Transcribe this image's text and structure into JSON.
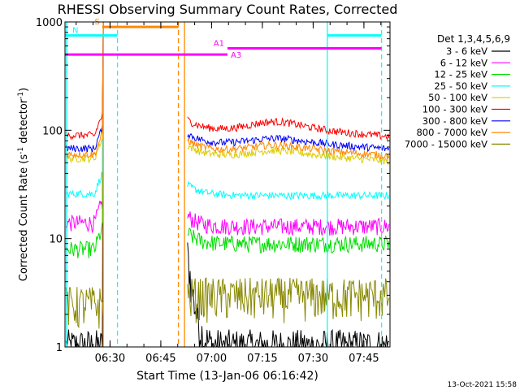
{
  "chart_data": {
    "type": "line",
    "title": "RHESSI Observing Summary Count Rates, Corrected",
    "xlabel": "Start Time (13-Jan-06 06:16:42)",
    "ylabel_prefix": "Corrected Count Rate (s",
    "ylabel_sup1": "-1",
    "ylabel_mid": " detector",
    "ylabel_sup2": "-1",
    "ylabel_suffix": ")",
    "y_scale": "log",
    "ylim": [
      1,
      1000
    ],
    "xlim_minutes": [
      0,
      96
    ],
    "x_ticks": [
      {
        "label": "06:30",
        "min": 13.3
      },
      {
        "label": "06:45",
        "min": 28.3
      },
      {
        "label": "07:00",
        "min": 43.3
      },
      {
        "label": "07:15",
        "min": 58.3
      },
      {
        "label": "07:30",
        "min": 73.3
      },
      {
        "label": "07:45",
        "min": 88.3
      }
    ],
    "y_ticks": [
      {
        "label": "1",
        "value": 1
      },
      {
        "label": "10",
        "value": 10
      },
      {
        "label": "100",
        "value": 100
      },
      {
        "label": "1000",
        "value": 1000
      }
    ],
    "legend_title": "Det 1,3,4,5,6,9",
    "legend_position": "top-right",
    "series": [
      {
        "name": "3 - 6 keV",
        "color": "#000000",
        "level_before": 1.0,
        "level_after": 1.5
      },
      {
        "name": "6 - 12 keV",
        "color": "#ff00ff",
        "level_before": 14,
        "level_after": 13
      },
      {
        "name": "12 - 25 keV",
        "color": "#00dd00",
        "level_before": 8,
        "level_after": 9
      },
      {
        "name": "25 - 50 keV",
        "color": "#00ffff",
        "level_before": 26,
        "level_after": 25
      },
      {
        "name": "50 - 100 keV",
        "color": "#ddcc00",
        "level_before": 55,
        "level_after": 58
      },
      {
        "name": "100 - 300 keV",
        "color": "#ff0000",
        "level_before": 90,
        "level_after": 100
      },
      {
        "name": "300 - 800 keV",
        "color": "#0000ff",
        "level_before": 68,
        "level_after": 75
      },
      {
        "name": "800 - 7000 keV",
        "color": "#ff8800",
        "level_before": 60,
        "level_after": 65
      },
      {
        "name": "7000 - 15000 keV",
        "color": "#888800",
        "level_before": 2.5,
        "level_after": 3
      }
    ],
    "data_gap_minutes": [
      11.3,
      36.2
    ],
    "annotations": [
      {
        "label": "S",
        "color": "#ff8800",
        "start": 11.0,
        "end": 33.5,
        "y": 900
      },
      {
        "label": "N",
        "color": "#00ffff",
        "start": 0,
        "end": 15.5,
        "y": 750
      },
      {
        "label": "N",
        "color": "#00ffff",
        "start": 77.5,
        "end": 93.5,
        "y": 750
      },
      {
        "label": "A1",
        "color": "#ff00ff",
        "start": 48.0,
        "end": 93.5,
        "y": 570
      },
      {
        "label": "A3",
        "color": "#ff00ff",
        "start": 0,
        "end": 48.0,
        "y": 500
      }
    ],
    "vertical_lines": [
      {
        "min": 0.5,
        "color": "#00ffff",
        "style": "solid"
      },
      {
        "min": 11.3,
        "color": "#ff8800",
        "style": "solid"
      },
      {
        "min": 15.5,
        "color": "#00ffff",
        "style": "dashed"
      },
      {
        "min": 33.5,
        "color": "#ff8800",
        "style": "dashed"
      },
      {
        "min": 35.3,
        "color": "#ff8800",
        "style": "solid"
      },
      {
        "min": 77.5,
        "color": "#00ffff",
        "style": "solid"
      },
      {
        "min": 93.5,
        "color": "#00ffff",
        "style": "dashed"
      }
    ]
  },
  "footer": {
    "timestamp": "13-Oct-2021 15:58"
  }
}
